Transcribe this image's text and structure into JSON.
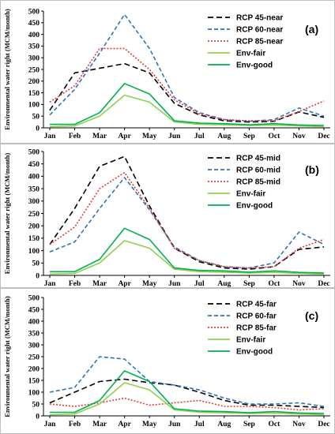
{
  "chart_data": [
    {
      "type": "line",
      "panel_label": "(a)",
      "ylabel": "Environmental water right (MCM/month)",
      "ylim": [
        0,
        500
      ],
      "yticks": [
        0,
        50,
        100,
        150,
        200,
        250,
        300,
        350,
        400,
        450,
        500
      ],
      "categories": [
        "Jan",
        "Feb",
        "Mar",
        "Apr",
        "May",
        "Jun",
        "Jul",
        "Aug",
        "Sep",
        "Oct",
        "Nov",
        "Dec"
      ],
      "legend_position": "top-right",
      "series": [
        {
          "name": "RCP 45-near",
          "color": "#000000",
          "dash": "long",
          "values": [
            75,
            235,
            255,
            275,
            235,
            105,
            55,
            30,
            25,
            28,
            68,
            45
          ]
        },
        {
          "name": "RCP 60-near",
          "color": "#2e75b6",
          "dash": "medium",
          "values": [
            55,
            165,
            320,
            485,
            340,
            130,
            65,
            35,
            28,
            35,
            85,
            50
          ]
        },
        {
          "name": "RCP 85-near",
          "color": "#e03c3c",
          "dash": "dot",
          "values": [
            110,
            180,
            340,
            340,
            250,
            120,
            60,
            35,
            30,
            30,
            70,
            115
          ]
        },
        {
          "name": "Env-fair",
          "color": "#92d050",
          "dash": "solid",
          "values": [
            5,
            8,
            50,
            140,
            110,
            25,
            15,
            13,
            10,
            12,
            8,
            5
          ]
        },
        {
          "name": "Env-good",
          "color": "#00b050",
          "dash": "solid",
          "values": [
            15,
            15,
            65,
            190,
            145,
            30,
            20,
            18,
            13,
            18,
            12,
            10
          ]
        }
      ]
    },
    {
      "type": "line",
      "panel_label": "(b)",
      "ylabel": "Environmental water right (MCM/month)",
      "ylim": [
        0,
        500
      ],
      "yticks": [
        0,
        50,
        100,
        150,
        200,
        250,
        300,
        350,
        400,
        450,
        500
      ],
      "categories": [
        "Jan",
        "Feb",
        "Mar",
        "Apr",
        "May",
        "Jun",
        "Jul",
        "Aug",
        "Sep",
        "Oct",
        "Nov",
        "Dec"
      ],
      "legend_position": "top-right",
      "series": [
        {
          "name": "RCP 45-mid",
          "color": "#000000",
          "dash": "long",
          "values": [
            125,
            270,
            440,
            480,
            280,
            110,
            55,
            30,
            25,
            35,
            105,
            115
          ]
        },
        {
          "name": "RCP 60-mid",
          "color": "#2e75b6",
          "dash": "medium",
          "values": [
            95,
            135,
            270,
            395,
            265,
            115,
            60,
            35,
            30,
            50,
            175,
            125
          ]
        },
        {
          "name": "RCP 85-mid",
          "color": "#e03c3c",
          "dash": "dot",
          "values": [
            125,
            195,
            350,
            415,
            270,
            110,
            60,
            35,
            30,
            35,
            110,
            145
          ]
        },
        {
          "name": "Env-fair",
          "color": "#92d050",
          "dash": "solid",
          "values": [
            5,
            8,
            50,
            140,
            110,
            25,
            15,
            13,
            10,
            12,
            8,
            5
          ]
        },
        {
          "name": "Env-good",
          "color": "#00b050",
          "dash": "solid",
          "values": [
            15,
            15,
            65,
            190,
            145,
            30,
            20,
            18,
            13,
            18,
            12,
            10
          ]
        }
      ]
    },
    {
      "type": "line",
      "panel_label": "(c)",
      "ylabel": "Environmental water right (MCM/month)",
      "ylim": [
        0,
        500
      ],
      "yticks": [
        0,
        50,
        100,
        150,
        200,
        250,
        300,
        350,
        400,
        450,
        500
      ],
      "categories": [
        "Jan",
        "Feb",
        "Mar",
        "Apr",
        "May",
        "Jun",
        "Jul",
        "Aug",
        "Sep",
        "Oct",
        "Nov",
        "Dec"
      ],
      "legend_position": "top-right",
      "series": [
        {
          "name": "RCP 45-far",
          "color": "#000000",
          "dash": "long",
          "values": [
            55,
            100,
            145,
            155,
            140,
            130,
            100,
            65,
            45,
            45,
            40,
            35
          ]
        },
        {
          "name": "RCP 60-far",
          "color": "#2e75b6",
          "dash": "medium",
          "values": [
            100,
            120,
            250,
            240,
            145,
            130,
            110,
            75,
            50,
            50,
            55,
            40
          ]
        },
        {
          "name": "RCP 85-far",
          "color": "#e03c3c",
          "dash": "dot",
          "values": [
            50,
            40,
            55,
            75,
            45,
            55,
            65,
            40,
            40,
            35,
            25,
            30
          ]
        },
        {
          "name": "Env-fair",
          "color": "#92d050",
          "dash": "solid",
          "values": [
            5,
            8,
            50,
            140,
            110,
            25,
            15,
            13,
            10,
            12,
            8,
            5
          ]
        },
        {
          "name": "Env-good",
          "color": "#00b050",
          "dash": "solid",
          "values": [
            15,
            15,
            65,
            190,
            145,
            30,
            20,
            18,
            13,
            18,
            12,
            10
          ]
        }
      ]
    }
  ]
}
